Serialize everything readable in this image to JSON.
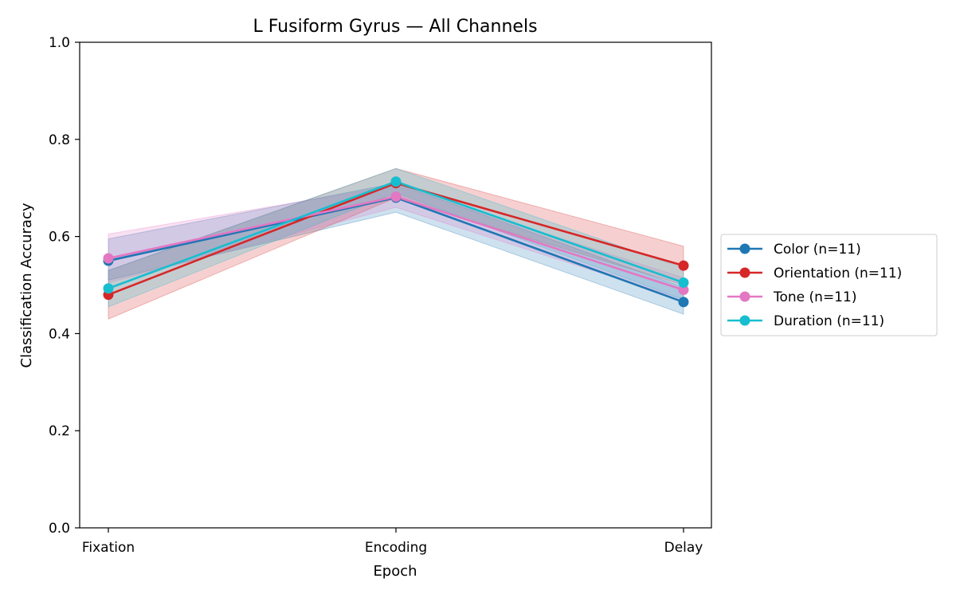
{
  "chart_data": {
    "type": "line",
    "title": "L Fusiform Gyrus — All Channels",
    "xlabel": "Epoch",
    "ylabel": "Classification Accuracy",
    "categories": [
      "Fixation",
      "Encoding",
      "Delay"
    ],
    "ylim": [
      0,
      1
    ],
    "yticks": [
      "0.0",
      "0.2",
      "0.4",
      "0.6",
      "0.8",
      "1.0"
    ],
    "grid": false,
    "legend_position": "center-right-outside",
    "series": [
      {
        "name": "Color (n=11)",
        "color": "#1f77b4",
        "values": [
          0.55,
          0.68,
          0.465
        ],
        "band_low": [
          0.51,
          0.65,
          0.44
        ],
        "band_high": [
          0.595,
          0.71,
          0.495
        ]
      },
      {
        "name": "Orientation (n=11)",
        "color": "#d62728",
        "values": [
          0.48,
          0.71,
          0.54
        ],
        "band_low": [
          0.43,
          0.68,
          0.5
        ],
        "band_high": [
          0.53,
          0.74,
          0.58
        ]
      },
      {
        "name": "Tone (n=11)",
        "color": "#e377c2",
        "values": [
          0.555,
          0.682,
          0.49
        ],
        "band_low": [
          0.505,
          0.66,
          0.47
        ],
        "band_high": [
          0.605,
          0.705,
          0.515
        ]
      },
      {
        "name": "Duration (n=11)",
        "color": "#17becf",
        "values": [
          0.493,
          0.713,
          0.505
        ],
        "band_low": [
          0.455,
          0.69,
          0.47
        ],
        "band_high": [
          0.53,
          0.74,
          0.535
        ]
      }
    ]
  }
}
